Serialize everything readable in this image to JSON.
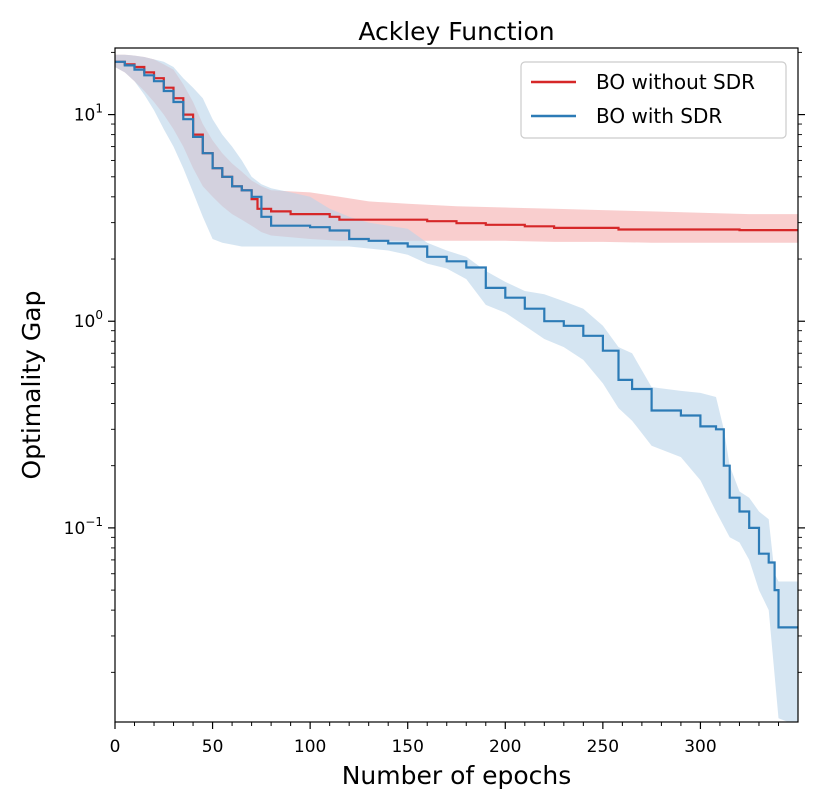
{
  "chart_data": {
    "type": "line",
    "title": "Ackley Function",
    "xlabel": "Number of epochs",
    "ylabel": "Optimality Gap",
    "yscale": "log",
    "xlim": [
      0,
      350
    ],
    "ylim": [
      0.0115,
      21
    ],
    "xticks": [
      0,
      50,
      100,
      150,
      200,
      250,
      300
    ],
    "xtick_labels": [
      "0",
      "50",
      "100",
      "150",
      "200",
      "250",
      "300"
    ],
    "yticks": [
      {
        "value": 10,
        "base": "10",
        "exp": "1"
      },
      {
        "value": 1,
        "base": "10",
        "exp": "0"
      },
      {
        "value": 0.1,
        "base": "10",
        "exp": "−1"
      }
    ],
    "grid": false,
    "legend_position": "top-right",
    "series": [
      {
        "name": "BO without SDR",
        "color": "#d62728",
        "band_color": "#f4a6a6",
        "points": [
          [
            0,
            18
          ],
          [
            5,
            17.5
          ],
          [
            10,
            17
          ],
          [
            15,
            16
          ],
          [
            20,
            15
          ],
          [
            25,
            13.5
          ],
          [
            30,
            12
          ],
          [
            35,
            10
          ],
          [
            40,
            8
          ],
          [
            45,
            6.5
          ],
          [
            50,
            5.5
          ],
          [
            55,
            5
          ],
          [
            60,
            4.5
          ],
          [
            65,
            4.3
          ],
          [
            70,
            3.9
          ],
          [
            73,
            3.5
          ],
          [
            80,
            3.4
          ],
          [
            90,
            3.3
          ],
          [
            100,
            3.3
          ],
          [
            110,
            3.2
          ],
          [
            115,
            3.1
          ],
          [
            130,
            3.1
          ],
          [
            140,
            3.1
          ],
          [
            160,
            3.05
          ],
          [
            175,
            2.98
          ],
          [
            190,
            2.93
          ],
          [
            210,
            2.88
          ],
          [
            225,
            2.83
          ],
          [
            245,
            2.83
          ],
          [
            258,
            2.78
          ],
          [
            290,
            2.78
          ],
          [
            320,
            2.76
          ],
          [
            350,
            2.76
          ]
        ],
        "lower": [
          [
            0,
            17
          ],
          [
            5,
            16
          ],
          [
            10,
            14.5
          ],
          [
            15,
            13
          ],
          [
            20,
            11.5
          ],
          [
            25,
            10
          ],
          [
            30,
            8.5
          ],
          [
            35,
            7
          ],
          [
            40,
            5.5
          ],
          [
            45,
            4.5
          ],
          [
            50,
            4
          ],
          [
            55,
            3.6
          ],
          [
            60,
            3.3
          ],
          [
            65,
            3.1
          ],
          [
            70,
            2.9
          ],
          [
            75,
            2.7
          ],
          [
            80,
            2.6
          ],
          [
            90,
            2.55
          ],
          [
            100,
            2.5
          ],
          [
            115,
            2.45
          ],
          [
            130,
            2.45
          ],
          [
            150,
            2.45
          ],
          [
            175,
            2.45
          ],
          [
            200,
            2.45
          ],
          [
            225,
            2.42
          ],
          [
            250,
            2.42
          ],
          [
            275,
            2.4
          ],
          [
            300,
            2.4
          ],
          [
            325,
            2.4
          ],
          [
            350,
            2.4
          ]
        ],
        "upper": [
          [
            0,
            19.5
          ],
          [
            5,
            19.5
          ],
          [
            10,
            19.3
          ],
          [
            15,
            19
          ],
          [
            20,
            18.5
          ],
          [
            25,
            17.5
          ],
          [
            30,
            16.5
          ],
          [
            35,
            14
          ],
          [
            40,
            11.5
          ],
          [
            45,
            9
          ],
          [
            50,
            7.5
          ],
          [
            55,
            6.5
          ],
          [
            60,
            5.8
          ],
          [
            65,
            5.3
          ],
          [
            70,
            4.8
          ],
          [
            75,
            4.5
          ],
          [
            80,
            4.3
          ],
          [
            90,
            4.25
          ],
          [
            100,
            4.2
          ],
          [
            115,
            4.0
          ],
          [
            130,
            3.8
          ],
          [
            150,
            3.7
          ],
          [
            175,
            3.6
          ],
          [
            200,
            3.55
          ],
          [
            225,
            3.5
          ],
          [
            250,
            3.45
          ],
          [
            275,
            3.4
          ],
          [
            300,
            3.35
          ],
          [
            325,
            3.3
          ],
          [
            350,
            3.3
          ]
        ]
      },
      {
        "name": "BO with SDR",
        "color": "#2c7bb6",
        "band_color": "#b9d3e9",
        "points": [
          [
            0,
            18
          ],
          [
            5,
            17.3
          ],
          [
            10,
            16.5
          ],
          [
            15,
            15.5
          ],
          [
            20,
            14.5
          ],
          [
            25,
            13
          ],
          [
            30,
            11.5
          ],
          [
            35,
            9.5
          ],
          [
            40,
            7.8
          ],
          [
            45,
            6.5
          ],
          [
            50,
            5.5
          ],
          [
            55,
            5.0
          ],
          [
            60,
            4.5
          ],
          [
            65,
            4.3
          ],
          [
            70,
            4.0
          ],
          [
            75,
            3.2
          ],
          [
            80,
            2.9
          ],
          [
            90,
            2.9
          ],
          [
            100,
            2.85
          ],
          [
            110,
            2.75
          ],
          [
            120,
            2.5
          ],
          [
            130,
            2.45
          ],
          [
            140,
            2.38
          ],
          [
            150,
            2.3
          ],
          [
            160,
            2.05
          ],
          [
            170,
            1.95
          ],
          [
            180,
            1.82
          ],
          [
            190,
            1.45
          ],
          [
            200,
            1.3
          ],
          [
            210,
            1.15
          ],
          [
            220,
            1.0
          ],
          [
            230,
            0.95
          ],
          [
            240,
            0.85
          ],
          [
            250,
            0.72
          ],
          [
            258,
            0.52
          ],
          [
            265,
            0.47
          ],
          [
            275,
            0.37
          ],
          [
            290,
            0.35
          ],
          [
            300,
            0.31
          ],
          [
            308,
            0.3
          ],
          [
            312,
            0.2
          ],
          [
            315,
            0.14
          ],
          [
            320,
            0.12
          ],
          [
            325,
            0.1
          ],
          [
            330,
            0.075
          ],
          [
            335,
            0.068
          ],
          [
            338,
            0.05
          ],
          [
            340,
            0.033
          ],
          [
            350,
            0.033
          ]
        ],
        "lower": [
          [
            0,
            17
          ],
          [
            5,
            16
          ],
          [
            10,
            14.5
          ],
          [
            15,
            12.5
          ],
          [
            20,
            10.5
          ],
          [
            25,
            8.5
          ],
          [
            30,
            7
          ],
          [
            35,
            5.5
          ],
          [
            40,
            4.2
          ],
          [
            45,
            3.2
          ],
          [
            50,
            2.5
          ],
          [
            55,
            2.4
          ],
          [
            60,
            2.35
          ],
          [
            65,
            2.3
          ],
          [
            70,
            2.3
          ],
          [
            75,
            2.3
          ],
          [
            80,
            2.3
          ],
          [
            90,
            2.3
          ],
          [
            100,
            2.3
          ],
          [
            110,
            2.3
          ],
          [
            120,
            2.3
          ],
          [
            130,
            2.25
          ],
          [
            140,
            2.2
          ],
          [
            150,
            2.1
          ],
          [
            160,
            1.9
          ],
          [
            170,
            1.8
          ],
          [
            180,
            1.6
          ],
          [
            190,
            1.2
          ],
          [
            200,
            1.1
          ],
          [
            210,
            0.95
          ],
          [
            220,
            0.82
          ],
          [
            230,
            0.75
          ],
          [
            240,
            0.65
          ],
          [
            250,
            0.5
          ],
          [
            258,
            0.38
          ],
          [
            265,
            0.33
          ],
          [
            275,
            0.25
          ],
          [
            290,
            0.22
          ],
          [
            300,
            0.17
          ],
          [
            308,
            0.12
          ],
          [
            315,
            0.09
          ],
          [
            320,
            0.085
          ],
          [
            325,
            0.07
          ],
          [
            330,
            0.05
          ],
          [
            335,
            0.04
          ],
          [
            340,
            0.012
          ],
          [
            345,
            0.0115
          ],
          [
            350,
            0.0115
          ]
        ],
        "upper": [
          [
            0,
            19.5
          ],
          [
            5,
            19.5
          ],
          [
            10,
            19.3
          ],
          [
            15,
            19
          ],
          [
            20,
            18.5
          ],
          [
            25,
            18
          ],
          [
            30,
            17
          ],
          [
            35,
            15
          ],
          [
            40,
            13.5
          ],
          [
            45,
            12
          ],
          [
            50,
            9.5
          ],
          [
            55,
            8
          ],
          [
            60,
            7
          ],
          [
            65,
            6
          ],
          [
            70,
            5
          ],
          [
            75,
            4.6
          ],
          [
            80,
            4.4
          ],
          [
            90,
            4.2
          ],
          [
            100,
            4.0
          ],
          [
            110,
            3.5
          ],
          [
            120,
            3.2
          ],
          [
            130,
            3.0
          ],
          [
            140,
            2.9
          ],
          [
            150,
            2.8
          ],
          [
            160,
            2.4
          ],
          [
            170,
            2.2
          ],
          [
            180,
            2.05
          ],
          [
            190,
            1.75
          ],
          [
            200,
            1.55
          ],
          [
            210,
            1.4
          ],
          [
            220,
            1.35
          ],
          [
            230,
            1.25
          ],
          [
            240,
            1.15
          ],
          [
            250,
            0.95
          ],
          [
            258,
            0.75
          ],
          [
            265,
            0.7
          ],
          [
            275,
            0.48
          ],
          [
            290,
            0.46
          ],
          [
            300,
            0.45
          ],
          [
            308,
            0.43
          ],
          [
            312,
            0.3
          ],
          [
            315,
            0.2
          ],
          [
            320,
            0.15
          ],
          [
            325,
            0.14
          ],
          [
            330,
            0.12
          ],
          [
            335,
            0.11
          ],
          [
            338,
            0.06
          ],
          [
            340,
            0.055
          ],
          [
            350,
            0.055
          ]
        ]
      }
    ]
  }
}
